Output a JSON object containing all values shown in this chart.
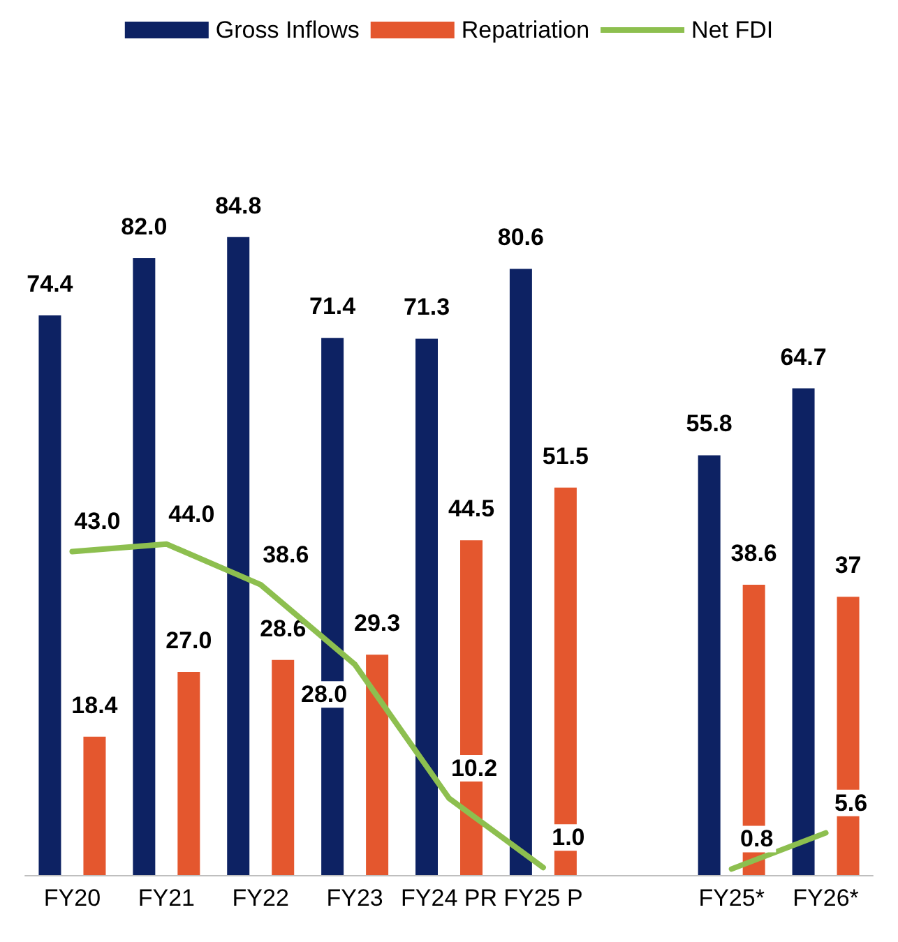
{
  "chart_data": {
    "type": "bar",
    "categories": [
      "FY20",
      "FY21",
      "FY22",
      "FY23",
      "FY24 PR",
      "FY25 P",
      null,
      "FY25*",
      "FY26*"
    ],
    "series": [
      {
        "name": "Gross Inflows",
        "color": "#0d2263",
        "values": [
          74.4,
          82.0,
          84.8,
          71.4,
          71.3,
          80.6,
          null,
          55.8,
          64.7
        ],
        "value_labels": [
          "74.4",
          "82.0",
          "84.8",
          "71.4",
          "71.3",
          "80.6",
          null,
          "55.8",
          "64.7"
        ]
      },
      {
        "name": "Repatriation",
        "color": "#e4572e",
        "values": [
          18.4,
          27.0,
          28.6,
          29.3,
          44.5,
          51.5,
          null,
          38.6,
          37
        ],
        "value_labels": [
          "18.4",
          "27.0",
          "28.6",
          "29.3",
          "44.5",
          "51.5",
          null,
          "38.6",
          "37"
        ]
      },
      {
        "name": "Net FDI",
        "type": "line",
        "color": "#8dbf4f",
        "values": [
          43.0,
          44.0,
          38.6,
          28.0,
          10.2,
          1.0,
          null,
          0.8,
          5.6
        ],
        "value_labels": [
          "43.0",
          "44.0",
          "38.6",
          "28.0",
          "10.2",
          "1.0",
          null,
          "0.8",
          "5.6"
        ]
      }
    ],
    "legend": "top",
    "marker": "none",
    "line_style": "solid"
  }
}
